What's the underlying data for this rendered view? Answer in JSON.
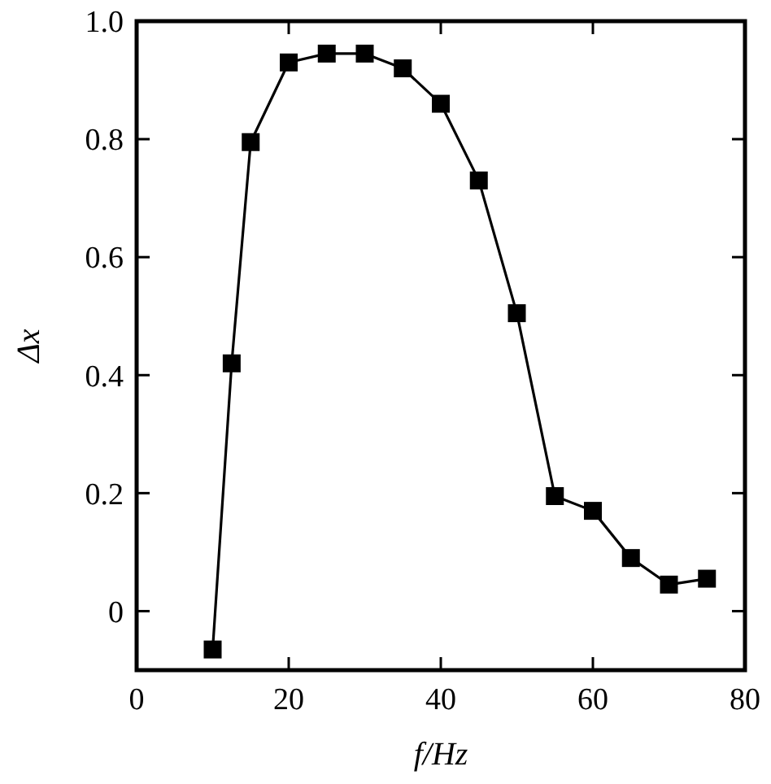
{
  "chart_data": {
    "type": "line",
    "xlabel": "f/Hz",
    "ylabel": "Δx",
    "x": [
      10,
      12.5,
      15,
      20,
      25,
      30,
      35,
      40,
      45,
      50,
      55,
      60,
      65,
      70,
      75
    ],
    "series": [
      {
        "color": "#000000",
        "values": [
          -0.065,
          0.42,
          0.795,
          0.93,
          0.945,
          0.945,
          0.92,
          0.86,
          0.73,
          0.505,
          0.195,
          0.17,
          0.09,
          0.045,
          0.055
        ]
      }
    ],
    "xlim": [
      0,
      80
    ],
    "xticks": [
      0,
      20,
      40,
      60,
      80
    ],
    "ylim": [
      -0.1,
      1.0
    ],
    "yticks": [
      {
        "value": 0,
        "label": "0"
      },
      0.2,
      0.4,
      0.6,
      0.8,
      {
        "value": 1,
        "label": "1.0"
      }
    ],
    "marker": "square",
    "line_style": "solid",
    "grid": false
  }
}
